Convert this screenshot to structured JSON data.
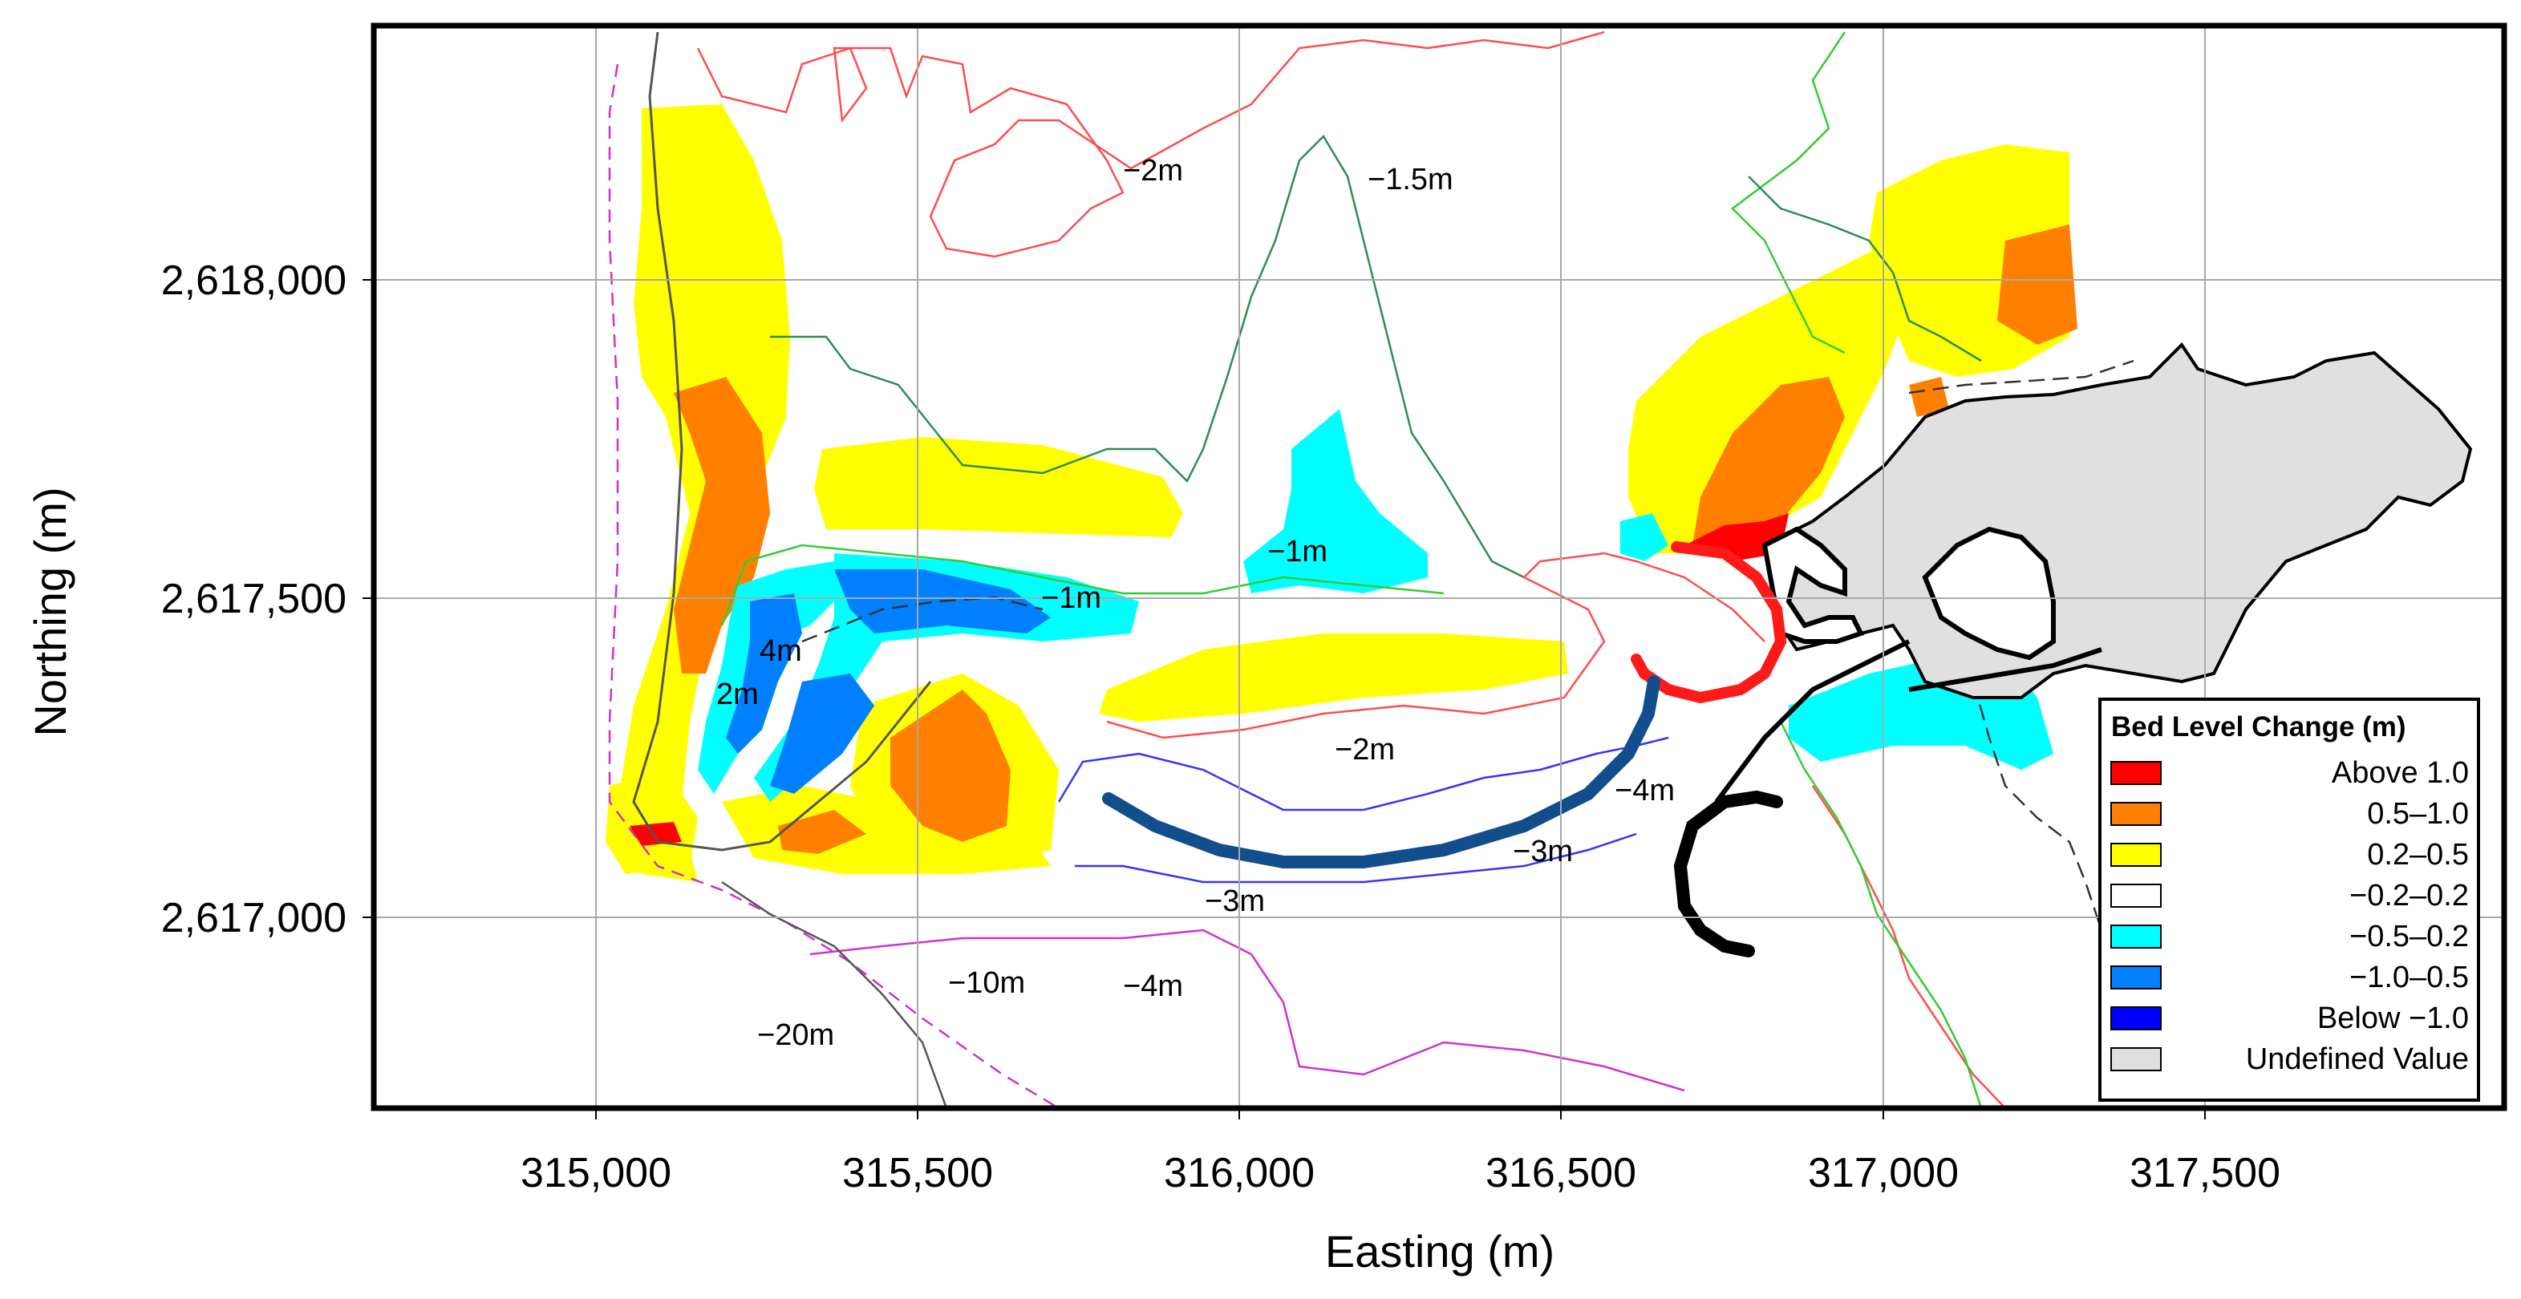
{
  "axes": {
    "xlabel": "Easting (m)",
    "ylabel": "Northing (m)",
    "xticks": [
      "315,000",
      "315,500",
      "316,000",
      "316,500",
      "317,000",
      "317,500"
    ],
    "yticks": [
      "2,618,000",
      "2,617,500",
      "2,617,000"
    ]
  },
  "contour_labels": [
    "−2m",
    "−1.5m",
    "−1m",
    "−1m",
    "4m",
    "2m",
    "−2m",
    "−4m",
    "−3m",
    "−3m",
    "−10m",
    "−4m",
    "−20m"
  ],
  "legend": {
    "title": "Bed Level Change (m)",
    "items": [
      {
        "label": "Above 1.0",
        "color": "#ff0000"
      },
      {
        "label": "0.5–1.0",
        "color": "#ff8000"
      },
      {
        "label": "0.2–0.5",
        "color": "#ffff00"
      },
      {
        "label": "−0.2–0.2",
        "color": "#ffffff"
      },
      {
        "label": "−0.5–0.2",
        "color": "#00ffff"
      },
      {
        "label": "−1.0–0.5",
        "color": "#0080ff"
      },
      {
        "label": "Below −1.0",
        "color": "#0000ff"
      },
      {
        "label": "Undefined Value",
        "color": "#e0e0e0"
      }
    ]
  },
  "colors": {
    "structure_red": "#ff1a1a",
    "structure_blue": "#134e8c",
    "structure_black": "#000000",
    "contour_red": "#ff4d4d",
    "contour_green": "#33cc33",
    "contour_darkgreen": "#2e8b57",
    "contour_blue": "#3333ff",
    "contour_magenta": "#cc33cc"
  }
}
